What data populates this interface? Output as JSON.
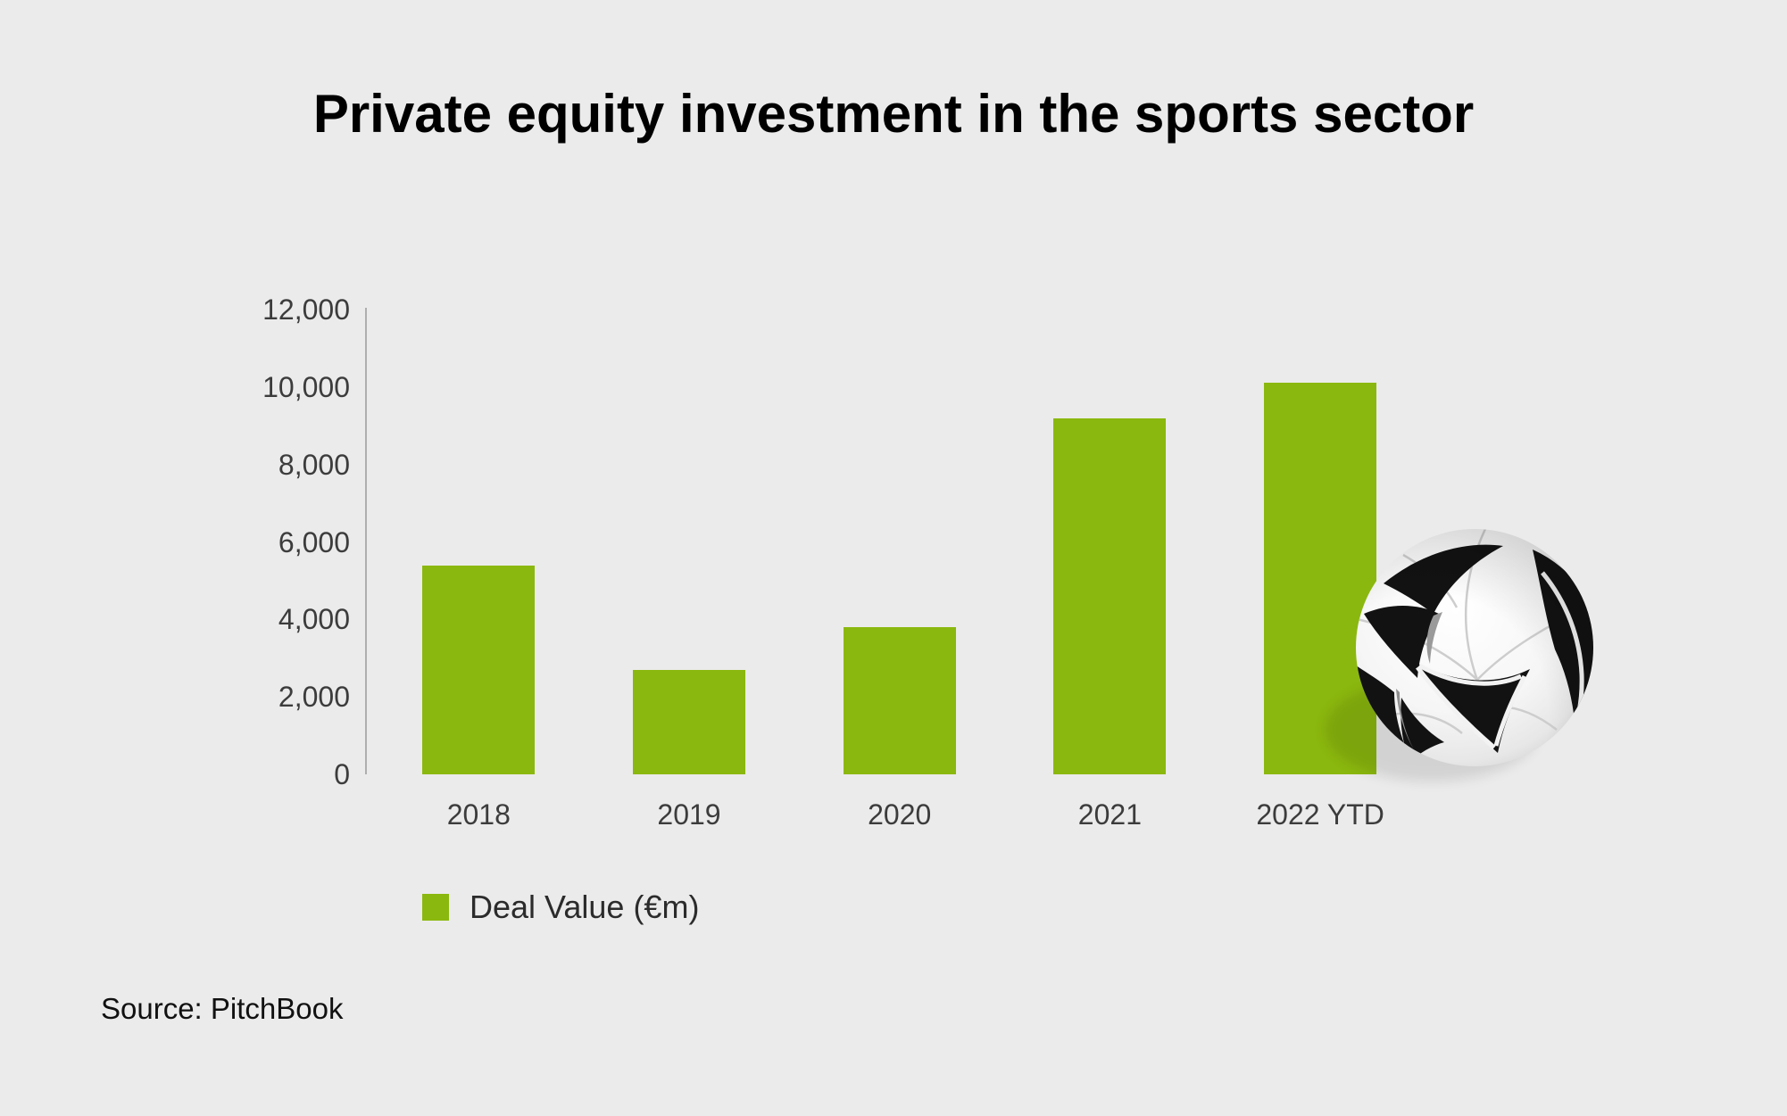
{
  "title": "Private equity investment in the sports sector",
  "source": "Source: PitchBook",
  "legend": {
    "label": "Deal Value (€m)",
    "swatch_color": "#8bb80e"
  },
  "colors": {
    "background": "#ebebeb",
    "bar": "#8bb80e",
    "axis_line": "#aeaeae",
    "tick_text": "#3c3c3c",
    "title_text": "#000000",
    "source_text": "#111111",
    "ball_black": "#121212"
  },
  "decoration": {
    "image": "soccer-ball"
  },
  "chart_data": {
    "type": "bar",
    "title": "Private equity investment in the sports sector",
    "categories": [
      "2018",
      "2019",
      "2020",
      "2021",
      "2022 YTD"
    ],
    "values": [
      5400,
      2700,
      3800,
      9200,
      10100
    ],
    "series_name": "Deal Value (€m)",
    "xlabel": "",
    "ylabel": "",
    "ylim": [
      0,
      12000
    ],
    "yticks": [
      0,
      2000,
      4000,
      6000,
      8000,
      10000,
      12000
    ],
    "ytick_labels": [
      "0",
      "2,000",
      "4,000",
      "6,000",
      "8,000",
      "10,000",
      "12,000"
    ],
    "grid": false,
    "bar_color": "#8bb80e",
    "legend_position": "below-chart-left",
    "source_note": "Source: PitchBook"
  }
}
